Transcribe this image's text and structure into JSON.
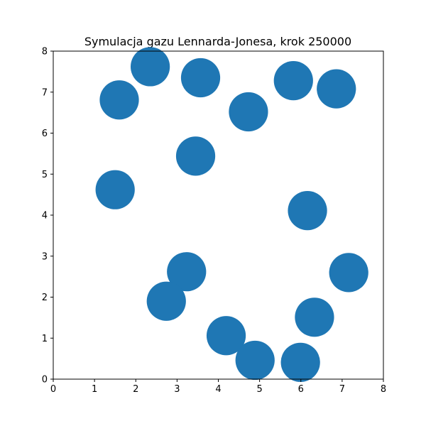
{
  "chart_data": {
    "type": "scatter",
    "title": "Symulacja gazu Lennarda-Jonesa, krok 250000",
    "xlabel": "",
    "ylabel": "",
    "xlim": [
      0,
      8
    ],
    "ylim": [
      0,
      8
    ],
    "xticks": [
      "0",
      "1",
      "2",
      "3",
      "4",
      "5",
      "6",
      "7",
      "8"
    ],
    "yticks": [
      "0",
      "1",
      "2",
      "3",
      "4",
      "5",
      "6",
      "7",
      "8"
    ],
    "grid": false,
    "marker_color": "#1f77b4",
    "marker_diameter_data_units": 0.95,
    "points": [
      {
        "x": 2.35,
        "y": 7.62
      },
      {
        "x": 3.57,
        "y": 7.35
      },
      {
        "x": 5.82,
        "y": 7.28
      },
      {
        "x": 6.86,
        "y": 7.08
      },
      {
        "x": 1.6,
        "y": 6.81
      },
      {
        "x": 4.73,
        "y": 6.52
      },
      {
        "x": 3.45,
        "y": 5.44
      },
      {
        "x": 1.5,
        "y": 4.62
      },
      {
        "x": 6.16,
        "y": 4.11
      },
      {
        "x": 3.23,
        "y": 2.62
      },
      {
        "x": 7.16,
        "y": 2.6
      },
      {
        "x": 2.74,
        "y": 1.9
      },
      {
        "x": 6.33,
        "y": 1.51
      },
      {
        "x": 4.19,
        "y": 1.06
      },
      {
        "x": 4.89,
        "y": 0.46
      },
      {
        "x": 5.99,
        "y": 0.41
      }
    ]
  }
}
